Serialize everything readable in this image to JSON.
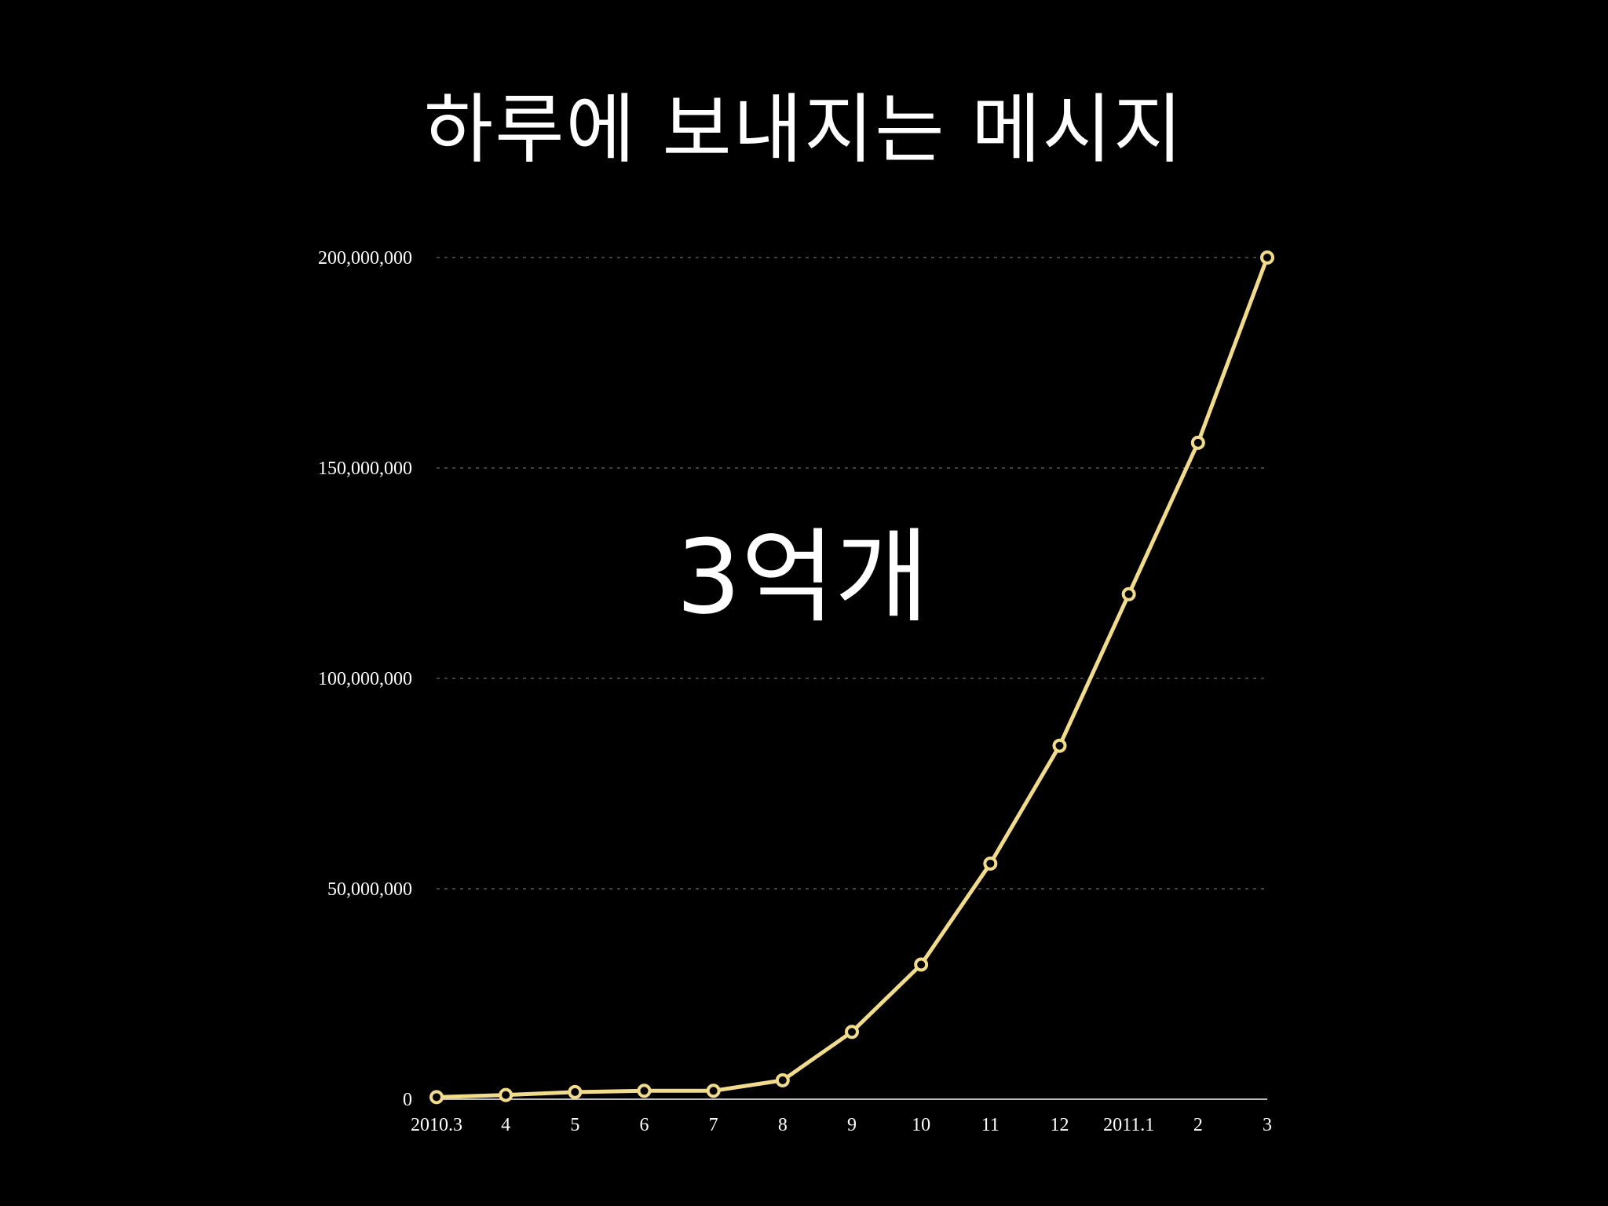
{
  "slide": {
    "title": "하루에 보내지는 메시지",
    "callout": "3억개"
  },
  "chart_data": {
    "type": "line",
    "title": "하루에 보내지는 메시지",
    "annotation": "3억개",
    "xlabel": "",
    "ylabel": "",
    "categories": [
      "2010.3",
      "4",
      "5",
      "6",
      "7",
      "8",
      "9",
      "10",
      "11",
      "12",
      "2011.1",
      "2",
      "3"
    ],
    "series": [
      {
        "values": [
          500000,
          1000000,
          1700000,
          2000000,
          2000000,
          4500000,
          16000000,
          32000000,
          56000000,
          84000000,
          120000000,
          156000000,
          200000000
        ]
      }
    ],
    "ylim": [
      0,
      200000000
    ],
    "yticks": [
      0,
      50000000,
      100000000,
      150000000,
      200000000
    ],
    "ytick_labels": [
      "0",
      "50,000,000",
      "100,000,000",
      "150,000,000",
      "200,000,000"
    ],
    "grid": true,
    "legend": "none",
    "colors": {
      "background": "#000000",
      "line": "#f2dc8c",
      "text": "#ffffff",
      "grid": "#555555"
    }
  }
}
